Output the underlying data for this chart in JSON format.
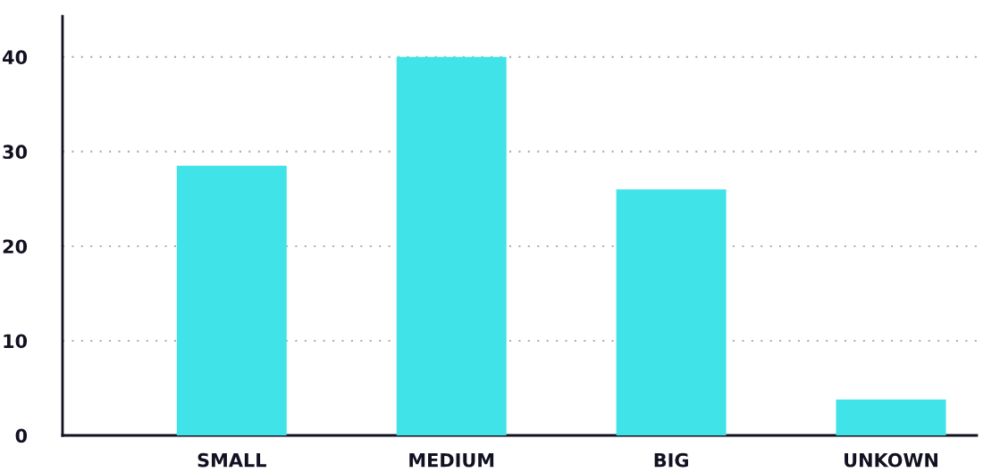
{
  "chart_data": {
    "type": "bar",
    "categories": [
      "SMALL",
      "MEDIUM",
      "BIG",
      "UNKOWN"
    ],
    "values": [
      28.5,
      40,
      26,
      3.8
    ],
    "color": "#40e3e8",
    "ylim": [
      0,
      44.3
    ],
    "yticks": [
      0,
      10,
      20,
      30,
      40
    ],
    "grid": "y",
    "legend": false
  }
}
